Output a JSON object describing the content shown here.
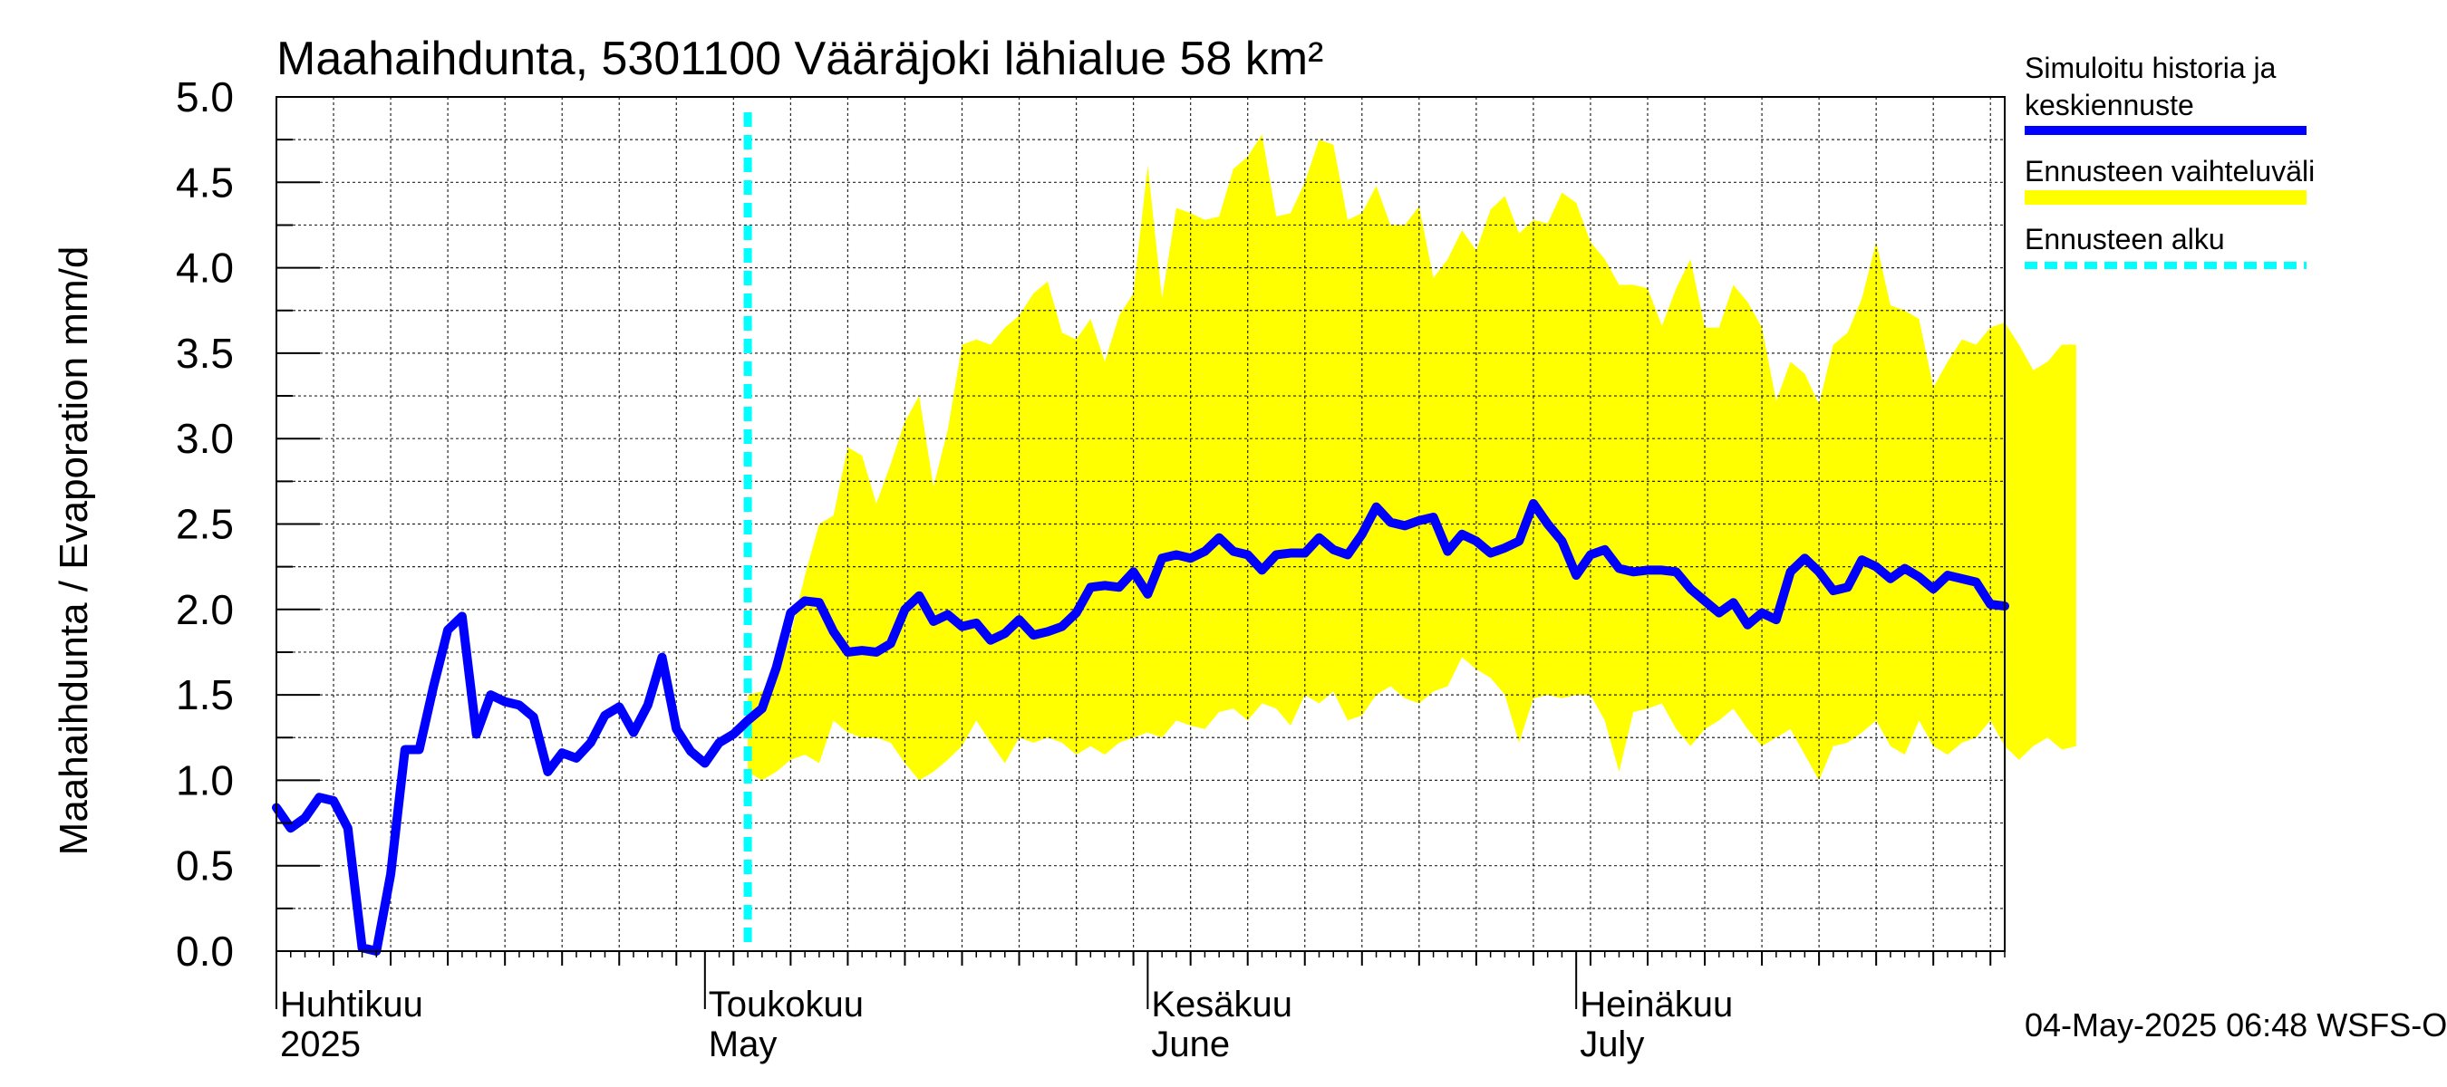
{
  "colors": {
    "series_line": "#0000ff",
    "band_fill": "#ffff00",
    "forecast_start": "#00ffff",
    "grid": "#000000",
    "text": "#000000"
  },
  "chart_data": {
    "type": "line",
    "title": "Maahaihdunta, 5301100 Vääräjoki lähialue 58 km²",
    "ylabel": "Maahaihdunta / Evaporation   mm/d",
    "ylim": [
      0,
      5
    ],
    "yticks": [
      "0.0",
      "0.5",
      "1.0",
      "1.5",
      "2.0",
      "2.5",
      "3.0",
      "3.5",
      "4.0",
      "4.5",
      "5.0"
    ],
    "x_start": "2025-04-01",
    "x_end": "2025-07-31",
    "grid": true,
    "legend_position": "right",
    "month_labels": [
      {
        "fi": "Huhtikuu",
        "en": "2025",
        "date": "2025-04-01"
      },
      {
        "fi": "Toukokuu",
        "en": "May",
        "date": "2025-05-01"
      },
      {
        "fi": "Kesäkuu",
        "en": "June",
        "date": "2025-06-01"
      },
      {
        "fi": "Heinäkuu",
        "en": "July",
        "date": "2025-07-01"
      }
    ],
    "forecast_start_date": "2025-05-04",
    "series": [
      {
        "name": "Simuloitu historia ja keskiennuste",
        "start_date": "2025-04-01",
        "values": [
          0.84,
          0.72,
          0.78,
          0.9,
          0.88,
          0.72,
          0.02,
          0.0,
          0.45,
          1.18,
          1.18,
          1.55,
          1.88,
          1.96,
          1.27,
          1.5,
          1.46,
          1.44,
          1.37,
          1.05,
          1.16,
          1.13,
          1.22,
          1.38,
          1.43,
          1.28,
          1.44,
          1.72,
          1.3,
          1.17,
          1.1,
          1.22,
          1.27,
          1.35,
          1.42,
          1.66,
          1.98,
          2.05,
          2.04,
          1.87,
          1.75,
          1.76,
          1.75,
          1.8,
          2.0,
          2.08,
          1.93,
          1.97,
          1.9,
          1.92,
          1.82,
          1.86,
          1.94,
          1.85,
          1.87,
          1.9,
          1.98,
          2.13,
          2.14,
          2.13,
          2.22,
          2.09,
          2.3,
          2.32,
          2.3,
          2.34,
          2.42,
          2.34,
          2.32,
          2.23,
          2.32,
          2.33,
          2.33,
          2.42,
          2.35,
          2.32,
          2.44,
          2.6,
          2.51,
          2.49,
          2.52,
          2.54,
          2.34,
          2.44,
          2.4,
          2.33,
          2.36,
          2.4,
          2.62,
          2.5,
          2.4,
          2.2,
          2.32,
          2.35,
          2.24,
          2.22,
          2.23,
          2.23,
          2.22,
          2.12,
          2.05,
          1.98,
          2.04,
          1.91,
          1.98,
          1.94,
          2.22,
          2.3,
          2.22,
          2.11,
          2.13,
          2.29,
          2.25,
          2.18,
          2.24,
          2.19,
          2.12,
          2.2,
          2.18,
          2.16,
          2.03,
          2.02
        ]
      },
      {
        "name": "Ennusteen vaihteluväli",
        "start_date": "2025-05-04",
        "upper": [
          1.5,
          1.52,
          1.6,
          1.85,
          2.2,
          2.5,
          2.55,
          2.95,
          2.9,
          2.62,
          2.85,
          3.1,
          3.25,
          2.72,
          3.05,
          3.55,
          3.58,
          3.55,
          3.65,
          3.72,
          3.85,
          3.92,
          3.62,
          3.58,
          3.7,
          3.45,
          3.72,
          3.85,
          4.6,
          3.82,
          4.35,
          4.32,
          4.28,
          4.3,
          4.58,
          4.65,
          4.78,
          4.3,
          4.32,
          4.5,
          4.75,
          4.72,
          4.28,
          4.32,
          4.48,
          4.25,
          4.25,
          4.36,
          3.94,
          4.05,
          4.22,
          4.1,
          4.34,
          4.42,
          4.2,
          4.28,
          4.26,
          4.44,
          4.38,
          4.15,
          4.05,
          3.9,
          3.9,
          3.88,
          3.66,
          3.88,
          4.05,
          3.65,
          3.65,
          3.9,
          3.8,
          3.65,
          3.22,
          3.45,
          3.38,
          3.2,
          3.55,
          3.62,
          3.82,
          4.15,
          3.78,
          3.75,
          3.7,
          3.3,
          3.45,
          3.58,
          3.55,
          3.65,
          3.68,
          3.55,
          3.4,
          3.45,
          3.55,
          3.55
        ],
        "lower": [
          1.05,
          1.0,
          1.05,
          1.12,
          1.15,
          1.1,
          1.35,
          1.28,
          1.25,
          1.25,
          1.22,
          1.1,
          1.0,
          1.05,
          1.12,
          1.2,
          1.35,
          1.22,
          1.1,
          1.25,
          1.22,
          1.25,
          1.22,
          1.15,
          1.2,
          1.15,
          1.22,
          1.25,
          1.28,
          1.25,
          1.35,
          1.32,
          1.3,
          1.4,
          1.42,
          1.35,
          1.45,
          1.42,
          1.32,
          1.5,
          1.45,
          1.52,
          1.35,
          1.38,
          1.5,
          1.55,
          1.48,
          1.45,
          1.52,
          1.55,
          1.72,
          1.65,
          1.6,
          1.5,
          1.22,
          1.48,
          1.5,
          1.48,
          1.5,
          1.5,
          1.35,
          1.05,
          1.4,
          1.42,
          1.45,
          1.3,
          1.2,
          1.3,
          1.35,
          1.42,
          1.3,
          1.2,
          1.25,
          1.3,
          1.15,
          1.0,
          1.2,
          1.22,
          1.28,
          1.35,
          1.2,
          1.15,
          1.35,
          1.2,
          1.15,
          1.22,
          1.25,
          1.35,
          1.2,
          1.12,
          1.2,
          1.25,
          1.18,
          1.2
        ]
      },
      {
        "name": "Ennusteen alku"
      }
    ]
  },
  "footer": {
    "timestamp": "04-May-2025 06:48 WSFS-O"
  }
}
